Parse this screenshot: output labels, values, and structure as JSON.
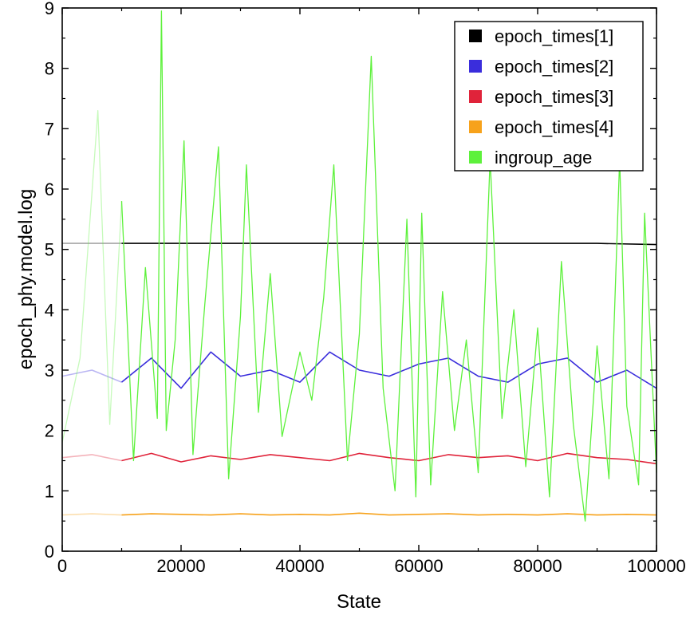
{
  "chart_data": {
    "type": "line",
    "title": "",
    "xlabel": "State",
    "ylabel": "epoch_phy.model.log",
    "xlim": [
      0,
      100000
    ],
    "ylim": [
      0,
      9
    ],
    "x_ticks": [
      0,
      20000,
      40000,
      60000,
      80000,
      100000
    ],
    "y_ticks": [
      0,
      1,
      2,
      3,
      4,
      5,
      6,
      7,
      8,
      9
    ],
    "x_tick_labels": [
      "0",
      "20000",
      "40000",
      "60000",
      "80000",
      "100000"
    ],
    "y_tick_labels": [
      "0",
      "1",
      "2",
      "3",
      "4",
      "5",
      "6",
      "7",
      "8",
      "9"
    ],
    "burnin_end": 10000,
    "grid": false,
    "legend_position": "top-right",
    "series": [
      {
        "name": "epoch_times[1]",
        "color": "#000000",
        "x": [
          0,
          10000,
          20000,
          30000,
          40000,
          50000,
          60000,
          70000,
          80000,
          90000,
          100000
        ],
        "y": [
          5.1,
          5.1,
          5.1,
          5.1,
          5.1,
          5.1,
          5.1,
          5.1,
          5.1,
          5.1,
          5.08
        ]
      },
      {
        "name": "epoch_times[2]",
        "color": "#3a2ddc",
        "x": [
          0,
          5000,
          10000,
          15000,
          20000,
          25000,
          30000,
          35000,
          40000,
          45000,
          50000,
          55000,
          60000,
          65000,
          70000,
          75000,
          80000,
          85000,
          90000,
          95000,
          100000
        ],
        "y": [
          2.9,
          3.0,
          2.8,
          3.2,
          2.7,
          3.3,
          2.9,
          3.0,
          2.8,
          3.3,
          3.0,
          2.9,
          3.1,
          3.2,
          2.9,
          2.8,
          3.1,
          3.2,
          2.8,
          3.0,
          2.7
        ]
      },
      {
        "name": "epoch_times[3]",
        "color": "#e0233a",
        "x": [
          0,
          5000,
          10000,
          15000,
          20000,
          25000,
          30000,
          35000,
          40000,
          45000,
          50000,
          55000,
          60000,
          65000,
          70000,
          75000,
          80000,
          85000,
          90000,
          95000,
          100000
        ],
        "y": [
          1.55,
          1.6,
          1.5,
          1.62,
          1.48,
          1.58,
          1.52,
          1.6,
          1.55,
          1.5,
          1.62,
          1.55,
          1.5,
          1.6,
          1.55,
          1.58,
          1.5,
          1.62,
          1.55,
          1.52,
          1.45
        ]
      },
      {
        "name": "epoch_times[4]",
        "color": "#f7a21b",
        "x": [
          0,
          5000,
          10000,
          15000,
          20000,
          25000,
          30000,
          35000,
          40000,
          45000,
          50000,
          55000,
          60000,
          65000,
          70000,
          75000,
          80000,
          85000,
          90000,
          95000,
          100000
        ],
        "y": [
          0.6,
          0.62,
          0.6,
          0.62,
          0.61,
          0.6,
          0.62,
          0.6,
          0.61,
          0.6,
          0.63,
          0.6,
          0.61,
          0.62,
          0.6,
          0.61,
          0.6,
          0.62,
          0.6,
          0.61,
          0.6
        ]
      },
      {
        "name": "ingroup_age",
        "color": "#5df13b",
        "x": [
          0,
          3000,
          6000,
          8000,
          10000,
          12000,
          14000,
          16000,
          16700,
          17500,
          19000,
          20500,
          22000,
          24000,
          26300,
          28000,
          30000,
          31000,
          33000,
          35000,
          37000,
          40000,
          42000,
          44000,
          45700,
          48000,
          50000,
          52000,
          54000,
          56000,
          58000,
          59500,
          60500,
          62000,
          64000,
          66000,
          68000,
          70000,
          72000,
          74000,
          76000,
          78000,
          80000,
          82000,
          84000,
          86000,
          88000,
          90000,
          92000,
          93800,
          95000,
          97000,
          98000,
          100000
        ],
        "y": [
          1.8,
          3.2,
          7.3,
          2.1,
          5.8,
          1.5,
          4.7,
          2.2,
          8.95,
          2.0,
          3.5,
          6.8,
          1.6,
          4.1,
          6.7,
          1.2,
          3.9,
          6.4,
          2.3,
          4.6,
          1.9,
          3.3,
          2.5,
          4.2,
          6.4,
          1.5,
          3.6,
          8.2,
          2.7,
          1.0,
          5.5,
          0.9,
          5.6,
          1.1,
          4.3,
          2.0,
          3.5,
          1.3,
          6.5,
          2.2,
          4.0,
          1.4,
          3.7,
          0.9,
          4.8,
          2.1,
          0.5,
          3.4,
          1.2,
          6.5,
          2.4,
          1.1,
          5.6,
          1.3
        ]
      }
    ]
  }
}
